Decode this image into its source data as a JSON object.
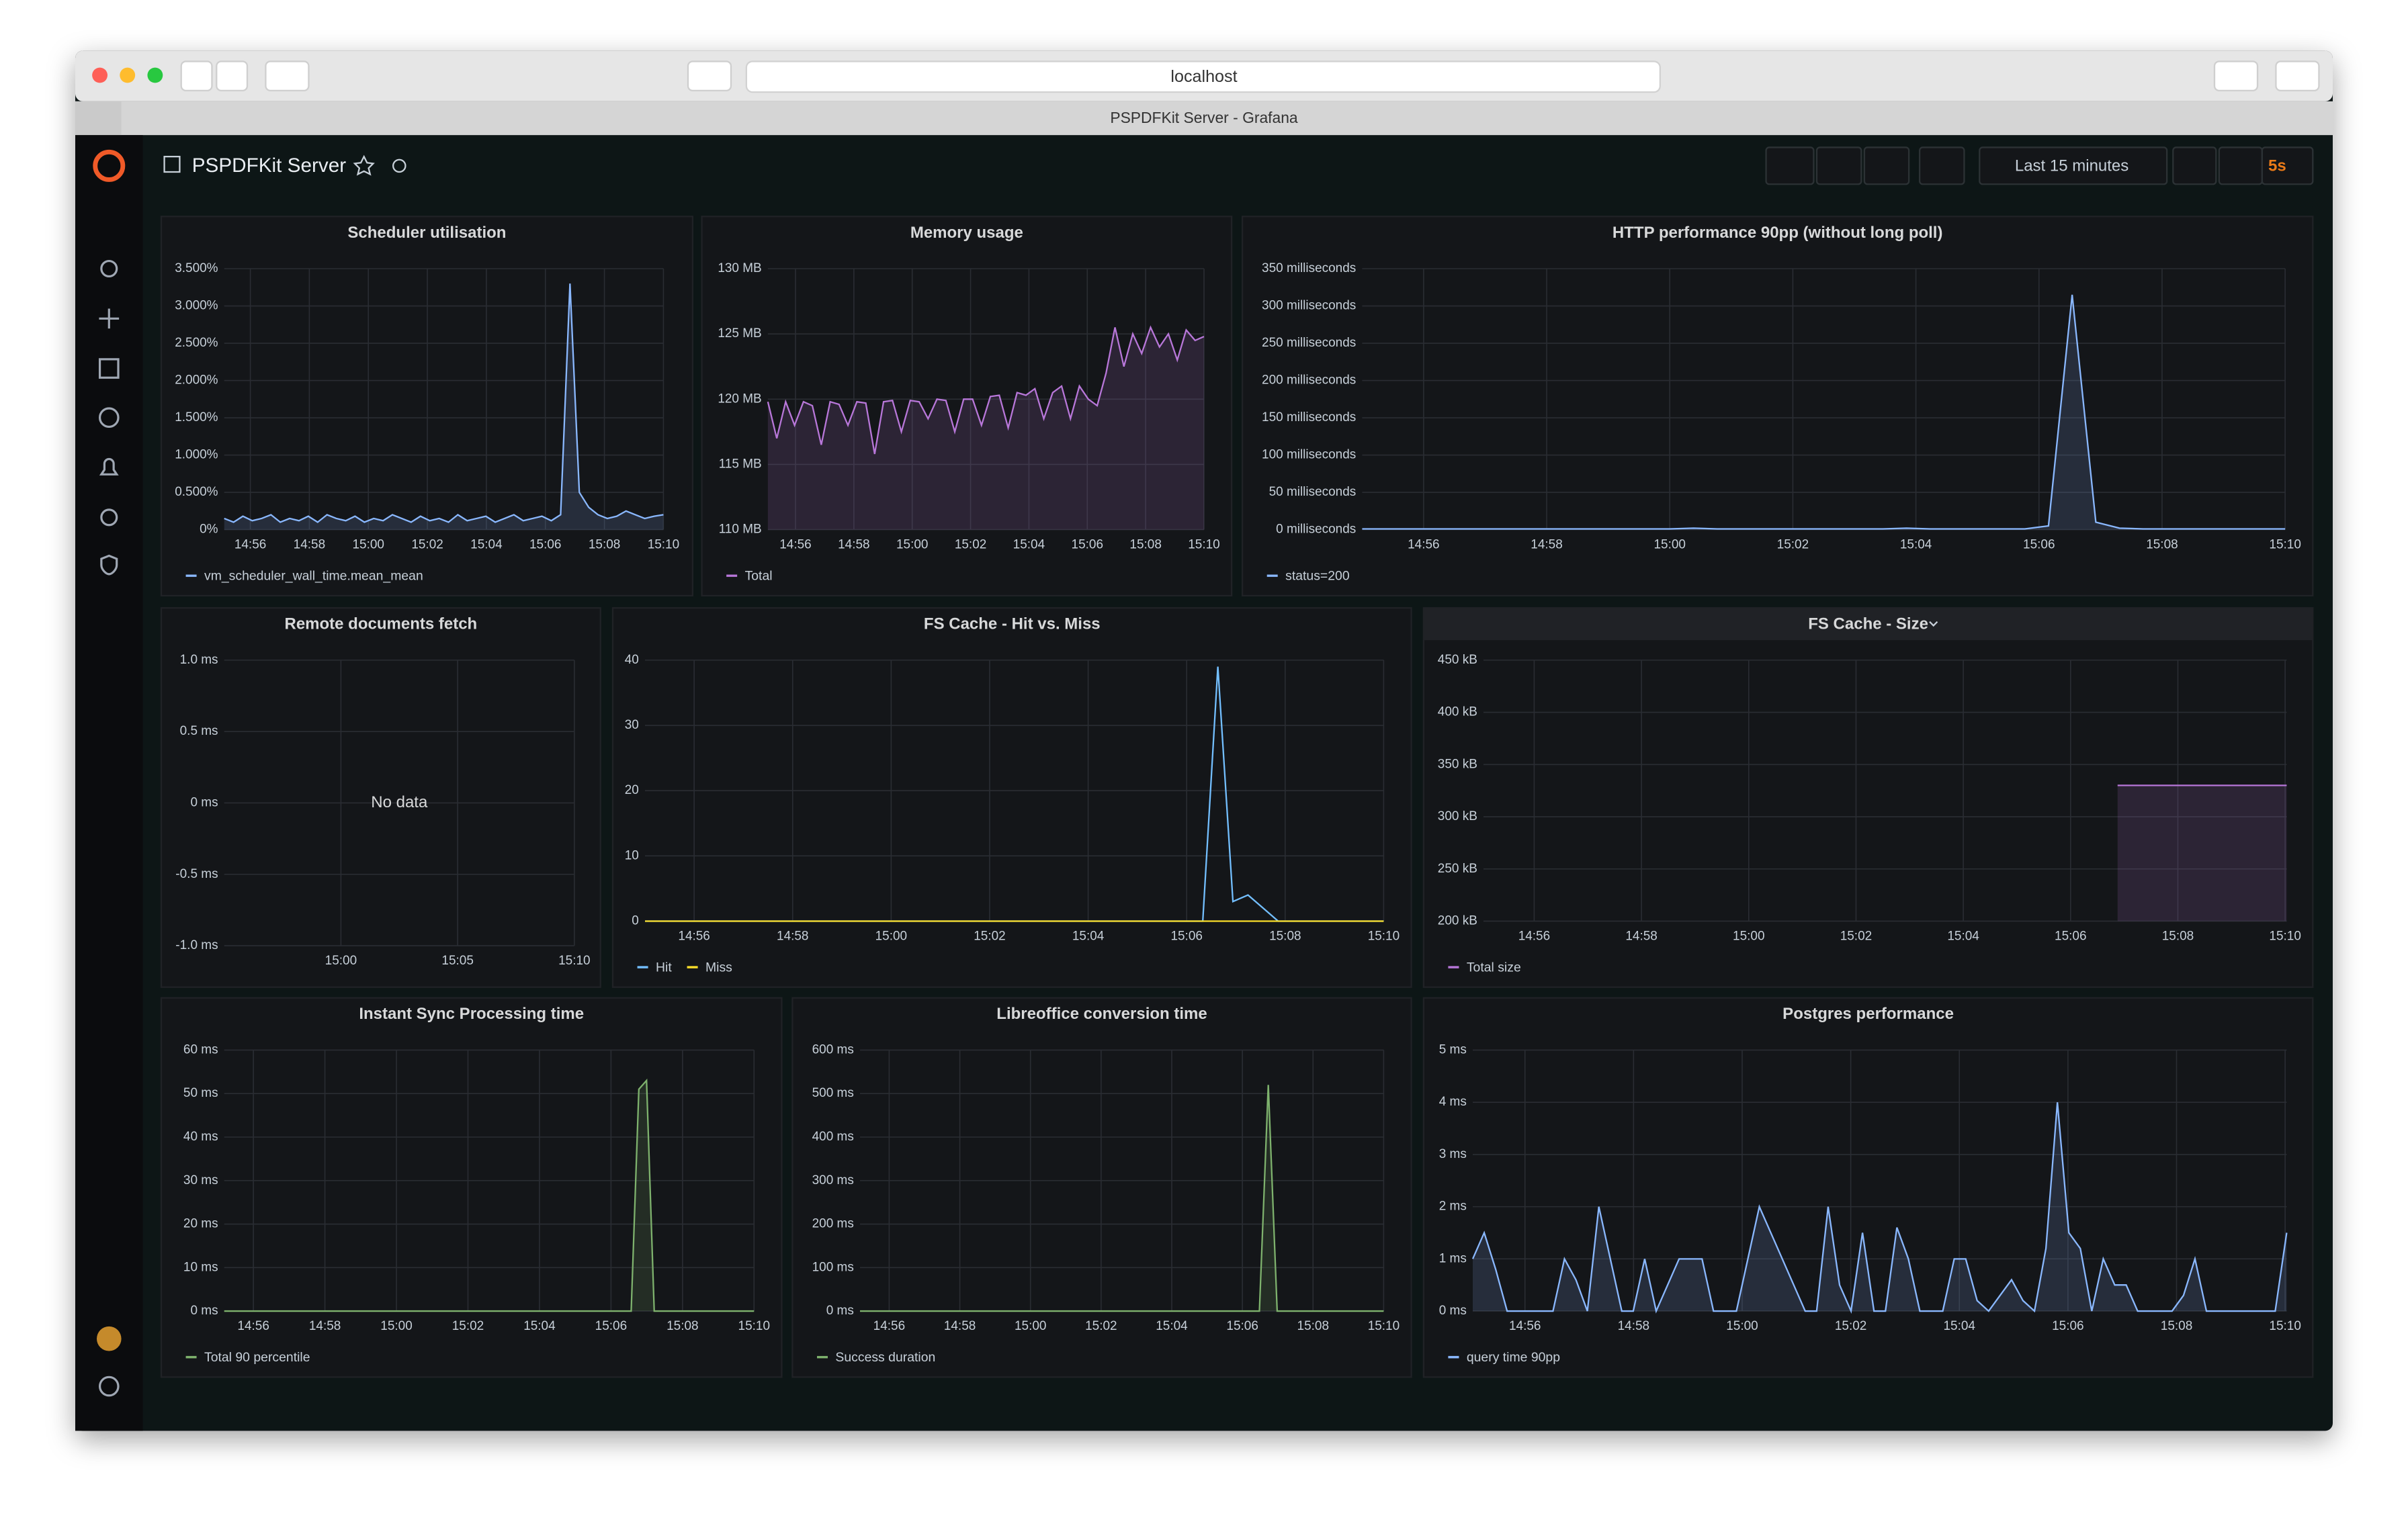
{
  "browser": {
    "url": "localhost",
    "tab_title": "PSPDFKit Server - Grafana"
  },
  "dashboard": {
    "title": "PSPDFKit Server",
    "time_range": "Last 15 minutes",
    "refresh": "5s"
  },
  "panels": [
    {
      "type": "line",
      "title": "Scheduler utilisation",
      "ylim": [
        0,
        3.5
      ],
      "yticks": [
        {
          "value": 0,
          "label": "0%"
        },
        {
          "value": 0.5,
          "label": "0.500%"
        },
        {
          "value": 1,
          "label": "1.000%"
        },
        {
          "value": 1.5,
          "label": "1.500%"
        },
        {
          "value": 2,
          "label": "2.000%"
        },
        {
          "value": 2.5,
          "label": "2.500%"
        },
        {
          "value": 3,
          "label": "3.000%"
        },
        {
          "value": 3.5,
          "label": "3.500%"
        }
      ],
      "xticks": [
        "14:56",
        "14:58",
        "15:00",
        "15:02",
        "15:04",
        "15:06",
        "15:08",
        "15:10"
      ],
      "series": [
        {
          "name": "vm_scheduler_wall_time.mean_mean",
          "color": "#8ab8ff",
          "fill": true,
          "values": [
            0.15,
            0.1,
            0.18,
            0.12,
            0.15,
            0.2,
            0.1,
            0.15,
            0.12,
            0.18,
            0.1,
            0.2,
            0.15,
            0.12,
            0.18,
            0.1,
            0.15,
            0.12,
            0.2,
            0.15,
            0.1,
            0.18,
            0.12,
            0.15,
            0.1,
            0.2,
            0.12,
            0.15,
            0.18,
            0.1,
            0.15,
            0.2,
            0.12,
            0.15,
            0.18,
            0.12,
            0.2,
            3.3,
            0.5,
            0.3,
            0.2,
            0.15,
            0.18,
            0.25,
            0.2,
            0.15,
            0.18,
            0.2
          ]
        }
      ]
    },
    {
      "type": "line",
      "title": "Memory usage",
      "ylim": [
        110,
        130
      ],
      "yticks": [
        {
          "value": 110,
          "label": "110 MB"
        },
        {
          "value": 115,
          "label": "115 MB"
        },
        {
          "value": 120,
          "label": "120 MB"
        },
        {
          "value": 125,
          "label": "125 MB"
        },
        {
          "value": 130,
          "label": "130 MB"
        }
      ],
      "xticks": [
        "14:56",
        "14:58",
        "15:00",
        "15:02",
        "15:04",
        "15:06",
        "15:08",
        "15:10"
      ],
      "series": [
        {
          "name": "Total",
          "color": "#b877d9",
          "fill": true,
          "values": [
            119.8,
            117,
            119.8,
            118,
            119.8,
            119.5,
            116.5,
            119.8,
            119.6,
            118,
            119.8,
            119.7,
            115.8,
            119.8,
            119.9,
            117.5,
            119.9,
            119.8,
            118.5,
            120,
            119.9,
            117.5,
            120,
            120,
            118,
            120.2,
            120.3,
            117.8,
            120.5,
            120.3,
            120.8,
            118.5,
            120.5,
            121,
            118.5,
            121,
            120,
            119.5,
            122,
            125.5,
            122.5,
            125,
            123.5,
            125.5,
            124,
            125,
            123,
            125.3,
            124.5,
            124.8
          ]
        }
      ]
    },
    {
      "type": "line",
      "title": "HTTP performance 90pp (without long poll)",
      "ylim": [
        0,
        350
      ],
      "yticks": [
        {
          "value": 0,
          "label": "0 milliseconds"
        },
        {
          "value": 50,
          "label": "50 milliseconds"
        },
        {
          "value": 100,
          "label": "100 milliseconds"
        },
        {
          "value": 150,
          "label": "150 milliseconds"
        },
        {
          "value": 200,
          "label": "200 milliseconds"
        },
        {
          "value": 250,
          "label": "250 milliseconds"
        },
        {
          "value": 300,
          "label": "300 milliseconds"
        },
        {
          "value": 350,
          "label": "350 milliseconds"
        }
      ],
      "xticks": [
        "14:56",
        "14:58",
        "15:00",
        "15:02",
        "15:04",
        "15:06",
        "15:08",
        "15:10"
      ],
      "series": [
        {
          "name": "status=200",
          "color": "#8ab8ff",
          "fill": true,
          "values": [
            1,
            1,
            1,
            1,
            1,
            1,
            1,
            1,
            1,
            1,
            1,
            1,
            1,
            1,
            2,
            1,
            1,
            1,
            1,
            1,
            1,
            1,
            1,
            2,
            1,
            1,
            1,
            1,
            1,
            5,
            315,
            10,
            2,
            1,
            1,
            1,
            1,
            1,
            1,
            1
          ]
        }
      ]
    },
    {
      "type": "line",
      "title": "Remote documents fetch",
      "message": "No data",
      "ylim": [
        -1,
        1
      ],
      "yticks": [
        {
          "value": -1,
          "label": "-1.0 ms"
        },
        {
          "value": -0.5,
          "label": "-0.5 ms"
        },
        {
          "value": 0,
          "label": "0 ms"
        },
        {
          "value": 0.5,
          "label": "0.5 ms"
        },
        {
          "value": 1,
          "label": "1.0 ms"
        }
      ],
      "xticks": [
        "15:00",
        "15:05",
        "15:10"
      ],
      "series": []
    },
    {
      "type": "line",
      "title": "FS Cache - Hit vs. Miss",
      "ylim": [
        0,
        40
      ],
      "yticks": [
        0,
        10,
        20,
        30,
        40
      ],
      "xticks": [
        "14:56",
        "14:58",
        "15:00",
        "15:02",
        "15:04",
        "15:06",
        "15:08",
        "15:10"
      ],
      "series": [
        {
          "name": "Hit",
          "color": "#73bfff",
          "fill": false,
          "values": [
            0,
            0,
            0,
            0,
            0,
            0,
            0,
            0,
            0,
            0,
            0,
            0,
            0,
            0,
            0,
            0,
            0,
            0,
            0,
            0,
            0,
            0,
            0,
            0,
            0,
            0,
            0,
            0,
            0,
            0,
            0,
            0,
            0,
            0,
            0,
            0,
            0,
            0,
            39,
            3,
            4,
            2,
            0,
            0,
            0,
            0,
            0,
            0,
            0,
            0
          ]
        },
        {
          "name": "Miss",
          "color": "#fade2a",
          "fill": false,
          "values": [
            0,
            0,
            0,
            0,
            0,
            0,
            0,
            0,
            0,
            0,
            0,
            0,
            0,
            0,
            0,
            0,
            0,
            0,
            0,
            0,
            0,
            0,
            0,
            0,
            0,
            0,
            0,
            0,
            0,
            0,
            0,
            0,
            0,
            0,
            0,
            0,
            0,
            0,
            0,
            0,
            0,
            0,
            0,
            0,
            0,
            0,
            0,
            0,
            0,
            0
          ]
        }
      ]
    },
    {
      "type": "line",
      "title": "FS Cache - Size",
      "ylim": [
        200,
        450
      ],
      "yticks": [
        {
          "value": 200,
          "label": "200 kB"
        },
        {
          "value": 250,
          "label": "250 kB"
        },
        {
          "value": 300,
          "label": "300 kB"
        },
        {
          "value": 350,
          "label": "350 kB"
        },
        {
          "value": 400,
          "label": "400 kB"
        },
        {
          "value": 450,
          "label": "450 kB"
        }
      ],
      "xticks": [
        "14:56",
        "14:58",
        "15:00",
        "15:02",
        "15:04",
        "15:06",
        "15:08",
        "15:10"
      ],
      "series": [
        {
          "name": "Total size",
          "color": "#b877d9",
          "fill": true,
          "values": [
            null,
            null,
            null,
            null,
            null,
            null,
            null,
            null,
            null,
            null,
            null,
            null,
            null,
            null,
            null,
            330,
            330,
            330,
            330,
            330
          ]
        }
      ]
    },
    {
      "type": "line",
      "title": "Instant Sync Processing time",
      "ylim": [
        0,
        60
      ],
      "yticks": [
        {
          "value": 0,
          "label": "0 ms"
        },
        {
          "value": 10,
          "label": "10 ms"
        },
        {
          "value": 20,
          "label": "20 ms"
        },
        {
          "value": 30,
          "label": "30 ms"
        },
        {
          "value": 40,
          "label": "40 ms"
        },
        {
          "value": 50,
          "label": "50 ms"
        },
        {
          "value": 60,
          "label": "60 ms"
        }
      ],
      "xticks": [
        "14:56",
        "14:58",
        "15:00",
        "15:02",
        "15:04",
        "15:06",
        "15:08",
        "15:10"
      ],
      "series": [
        {
          "name": "Total 90 percentile",
          "color": "#7eb26d",
          "fill": true,
          "values": [
            0,
            0,
            0,
            0,
            0,
            0,
            0,
            0,
            0,
            0,
            0,
            0,
            0,
            0,
            0,
            0,
            0,
            0,
            0,
            0,
            0,
            0,
            0,
            0,
            0,
            0,
            0,
            0,
            0,
            0,
            0,
            0,
            0,
            0,
            0,
            0,
            0,
            0,
            0,
            0,
            0,
            0,
            0,
            0,
            0,
            0,
            0,
            0,
            0,
            0,
            0,
            0,
            0,
            0,
            51,
            53,
            0,
            0,
            0,
            0,
            0,
            0,
            0,
            0,
            0,
            0,
            0,
            0,
            0,
            0
          ]
        }
      ]
    },
    {
      "type": "line",
      "title": "Libreoffice conversion time",
      "ylim": [
        0,
        600
      ],
      "yticks": [
        {
          "value": 0,
          "label": "0 ms"
        },
        {
          "value": 100,
          "label": "100 ms"
        },
        {
          "value": 200,
          "label": "200 ms"
        },
        {
          "value": 300,
          "label": "300 ms"
        },
        {
          "value": 400,
          "label": "400 ms"
        },
        {
          "value": 500,
          "label": "500 ms"
        },
        {
          "value": 600,
          "label": "600 ms"
        }
      ],
      "xticks": [
        "14:56",
        "14:58",
        "15:00",
        "15:02",
        "15:04",
        "15:06",
        "15:08",
        "15:10"
      ],
      "series": [
        {
          "name": "Success duration",
          "color": "#7eb26d",
          "fill": true,
          "values": [
            0,
            0,
            0,
            0,
            0,
            0,
            0,
            0,
            0,
            0,
            0,
            0,
            0,
            0,
            0,
            0,
            0,
            0,
            0,
            0,
            0,
            0,
            0,
            0,
            0,
            0,
            0,
            0,
            0,
            0,
            0,
            0,
            0,
            0,
            0,
            0,
            0,
            0,
            0,
            0,
            0,
            0,
            0,
            0,
            0,
            0,
            520,
            0,
            0,
            0,
            0,
            0,
            0,
            0,
            0,
            0,
            0,
            0,
            0,
            0
          ]
        }
      ]
    },
    {
      "type": "line",
      "title": "Postgres performance",
      "ylim": [
        0,
        5
      ],
      "yticks": [
        {
          "value": 0,
          "label": "0 ms"
        },
        {
          "value": 1,
          "label": "1 ms"
        },
        {
          "value": 2,
          "label": "2 ms"
        },
        {
          "value": 3,
          "label": "3 ms"
        },
        {
          "value": 4,
          "label": "4 ms"
        },
        {
          "value": 5,
          "label": "5 ms"
        }
      ],
      "xticks": [
        "14:56",
        "14:58",
        "15:00",
        "15:02",
        "15:04",
        "15:06",
        "15:08",
        "15:10"
      ],
      "series": [
        {
          "name": "query time 90pp",
          "color": "#8ab8ff",
          "fill": true,
          "values": [
            1,
            1.5,
            0.8,
            0,
            0,
            0,
            0,
            0,
            1,
            0.6,
            0,
            2,
            1,
            0,
            0,
            1,
            0,
            0.5,
            1,
            1,
            1,
            0,
            0,
            0,
            1,
            2,
            1.5,
            1,
            0.5,
            0,
            0,
            2,
            0.5,
            0,
            1.5,
            0,
            0,
            1.6,
            1,
            0,
            0,
            0,
            1,
            1,
            0.2,
            0,
            0.3,
            0.6,
            0.2,
            0,
            1.2,
            4,
            1.5,
            1.2,
            0,
            1,
            0.5,
            0.5,
            0,
            0,
            0,
            0,
            0.3,
            1,
            0,
            0,
            0,
            0,
            0,
            0,
            0,
            1.5
          ]
        }
      ]
    }
  ]
}
